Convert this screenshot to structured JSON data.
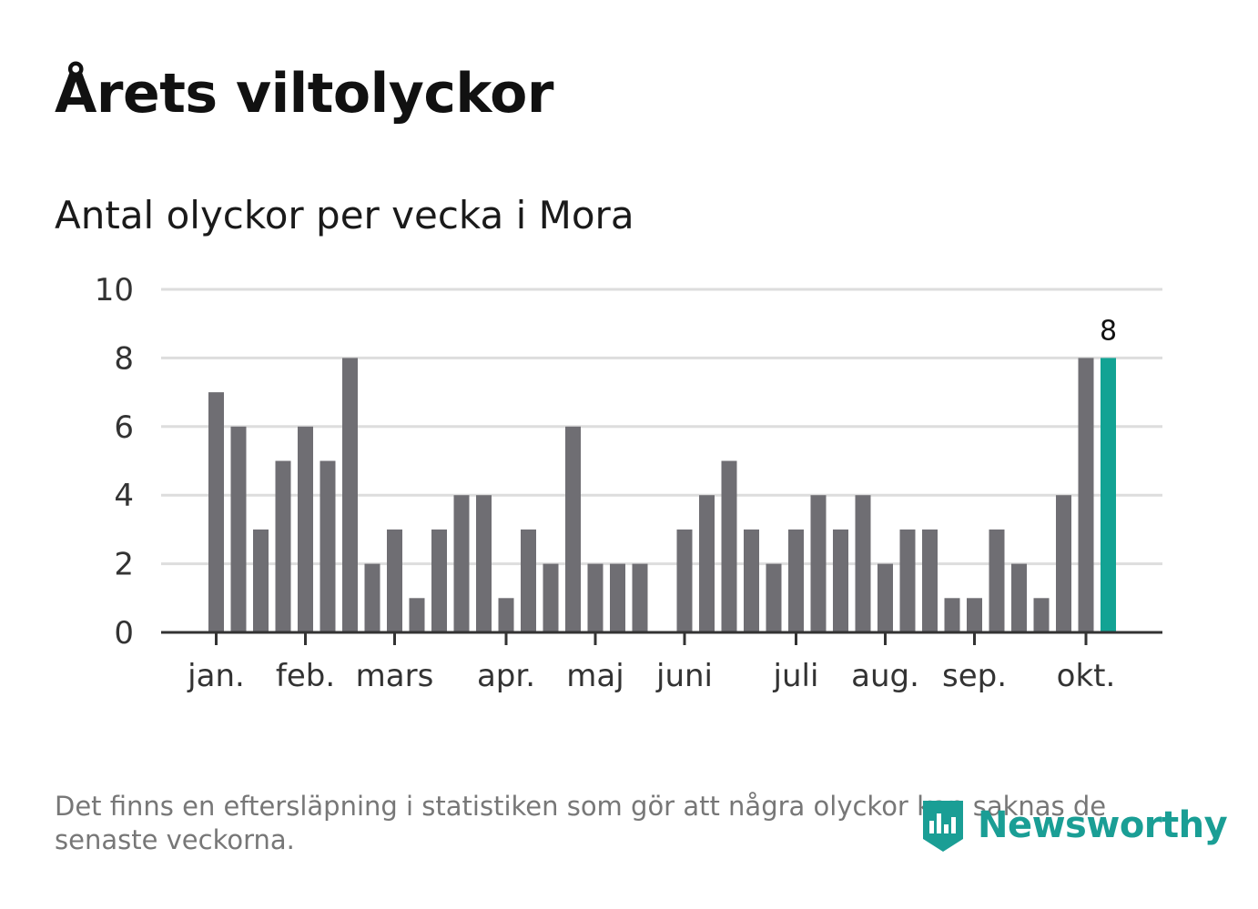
{
  "title": "Årets viltolyckor",
  "subtitle": "Antal olyckor per vecka i Mora",
  "footnote": "Det finns en eftersläpning i statistiken som gör att några olyckor kan saknas de senaste veckorna.",
  "brand": {
    "name": "Newsworthy",
    "color": "#1a9e95",
    "icon": "newsworthy-logo-icon"
  },
  "colors": {
    "bar": "#6f6e73",
    "highlight": "#12a394",
    "grid": "#dddddd",
    "axis": "#333333"
  },
  "chart_data": {
    "type": "bar",
    "title": "Antal olyckor per vecka i Mora",
    "xlabel": "",
    "ylabel": "",
    "ylim": [
      0,
      10
    ],
    "yticks": [
      0,
      2,
      4,
      6,
      8,
      10
    ],
    "grid": true,
    "weeks": [
      1,
      2,
      3,
      4,
      5,
      6,
      7,
      8,
      9,
      10,
      11,
      12,
      13,
      14,
      15,
      16,
      17,
      18,
      19,
      20,
      21,
      22,
      23,
      24,
      25,
      26,
      27,
      28,
      29,
      30,
      31,
      32,
      33,
      34,
      35,
      36,
      37,
      38,
      39,
      40,
      41
    ],
    "values": [
      7,
      6,
      3,
      5,
      6,
      5,
      8,
      2,
      3,
      1,
      3,
      4,
      4,
      1,
      3,
      2,
      6,
      2,
      2,
      2,
      0,
      3,
      4,
      5,
      3,
      2,
      3,
      4,
      3,
      4,
      2,
      3,
      3,
      1,
      1,
      3,
      2,
      1,
      4,
      8,
      8
    ],
    "highlight_index": 40,
    "highlight_label": "8",
    "month_ticks": [
      {
        "label": "jan.",
        "week": 1
      },
      {
        "label": "feb.",
        "week": 5
      },
      {
        "label": "mars",
        "week": 9
      },
      {
        "label": "apr.",
        "week": 14
      },
      {
        "label": "maj",
        "week": 18
      },
      {
        "label": "juni",
        "week": 22
      },
      {
        "label": "juli",
        "week": 27
      },
      {
        "label": "aug.",
        "week": 31
      },
      {
        "label": "sep.",
        "week": 35
      },
      {
        "label": "okt.",
        "week": 40
      }
    ]
  }
}
